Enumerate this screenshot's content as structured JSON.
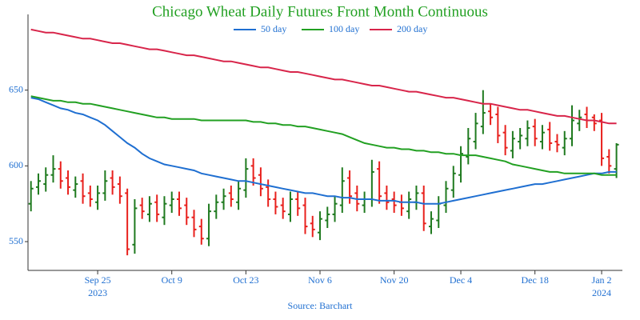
{
  "chart_data": {
    "type": "ohlc",
    "title": "Chicago Wheat Daily Futures Front Month Continuous",
    "source": "Source: Barchart",
    "up_color": "#1f7a1f",
    "down_color": "#e8201c",
    "ylim": [
      531,
      700
    ],
    "yticks": [
      550,
      600,
      650
    ],
    "xticks": [
      {
        "value": 9,
        "label": "Sep 25"
      },
      {
        "value": 19,
        "label": "Oct 9"
      },
      {
        "value": 29,
        "label": "Oct 23"
      },
      {
        "value": 39,
        "label": "Nov 6"
      },
      {
        "value": 49,
        "label": "Nov 20"
      },
      {
        "value": 58,
        "label": "Dec 4"
      },
      {
        "value": 68,
        "label": "Dec 18"
      },
      {
        "value": 77,
        "label": "Jan 2"
      }
    ],
    "xtick_years": [
      {
        "value": 9,
        "label": "2023"
      },
      {
        "value": 77,
        "label": "2024"
      }
    ],
    "open": [
      575,
      586,
      588,
      594,
      598,
      592,
      584,
      590,
      582,
      576,
      582,
      592,
      588,
      582,
      548,
      574,
      568,
      576,
      566,
      574,
      578,
      574,
      566,
      560,
      552,
      570,
      576,
      582,
      576,
      584,
      600,
      594,
      586,
      578,
      574,
      568,
      578,
      574,
      562,
      556,
      564,
      568,
      574,
      592,
      582,
      574,
      578,
      598,
      582,
      578,
      576,
      570,
      576,
      582,
      560,
      564,
      574,
      584,
      594,
      606,
      616,
      626,
      636,
      634,
      622,
      610,
      616,
      618,
      626,
      616,
      624,
      616,
      612,
      618,
      628,
      634,
      632,
      630,
      606,
      598
    ],
    "high": [
      590,
      595,
      599,
      607,
      603,
      597,
      593,
      595,
      587,
      587,
      597,
      597,
      593,
      585,
      578,
      579,
      580,
      581,
      580,
      583,
      583,
      579,
      571,
      565,
      575,
      581,
      585,
      587,
      590,
      605,
      605,
      599,
      591,
      583,
      579,
      583,
      583,
      579,
      567,
      570,
      573,
      580,
      599,
      597,
      587,
      583,
      604,
      603,
      587,
      583,
      581,
      583,
      587,
      587,
      570,
      580,
      590,
      600,
      613,
      625,
      635,
      650,
      641,
      639,
      627,
      623,
      625,
      630,
      631,
      627,
      629,
      621,
      623,
      640,
      637,
      639,
      634,
      635,
      611,
      615
    ],
    "low": [
      570,
      581,
      583,
      589,
      585,
      581,
      579,
      575,
      573,
      571,
      577,
      581,
      575,
      541,
      542,
      565,
      563,
      563,
      561,
      569,
      567,
      561,
      553,
      548,
      547,
      565,
      571,
      573,
      571,
      579,
      587,
      580,
      573,
      568,
      565,
      563,
      567,
      555,
      553,
      551,
      559,
      563,
      569,
      575,
      570,
      569,
      573,
      575,
      571,
      569,
      567,
      565,
      571,
      557,
      555,
      559,
      569,
      579,
      589,
      601,
      611,
      621,
      627,
      615,
      607,
      605,
      611,
      613,
      613,
      611,
      610,
      609,
      607,
      613,
      623,
      625,
      623,
      600,
      595,
      592
    ],
    "close": [
      585,
      590,
      594,
      598,
      590,
      586,
      588,
      580,
      578,
      582,
      590,
      586,
      580,
      545,
      572,
      570,
      575,
      568,
      575,
      578,
      572,
      566,
      558,
      552,
      570,
      576,
      580,
      578,
      585,
      598,
      592,
      585,
      578,
      573,
      570,
      578,
      572,
      560,
      558,
      565,
      568,
      575,
      590,
      580,
      575,
      578,
      596,
      580,
      576,
      574,
      572,
      578,
      582,
      562,
      565,
      575,
      585,
      595,
      608,
      618,
      628,
      635,
      632,
      620,
      612,
      618,
      620,
      625,
      618,
      622,
      615,
      614,
      618,
      630,
      632,
      630,
      628,
      605,
      600,
      614
    ],
    "series": [
      {
        "name": "50 day",
        "color": "#1f6fd1",
        "values": [
          645,
          644,
          642,
          640,
          638,
          637,
          635,
          634,
          632,
          630,
          627,
          623,
          619,
          615,
          612,
          608,
          605,
          603,
          601,
          600,
          599,
          598,
          597,
          595,
          594,
          593,
          592,
          591,
          590,
          590,
          589,
          588,
          587,
          586,
          585,
          584,
          583,
          582,
          582,
          581,
          580,
          580,
          579,
          579,
          578,
          578,
          578,
          577,
          577,
          577,
          576,
          576,
          576,
          575,
          575,
          575,
          576,
          577,
          578,
          579,
          580,
          581,
          582,
          583,
          584,
          585,
          586,
          587,
          588,
          588,
          589,
          590,
          591,
          592,
          593,
          594,
          595,
          595,
          596,
          596
        ]
      },
      {
        "name": "100 day",
        "color": "#22a022",
        "values": [
          646,
          645,
          644,
          643,
          643,
          642,
          642,
          641,
          641,
          640,
          639,
          638,
          637,
          636,
          635,
          634,
          633,
          632,
          632,
          631,
          631,
          631,
          631,
          630,
          630,
          630,
          630,
          630,
          630,
          630,
          629,
          629,
          628,
          628,
          627,
          627,
          626,
          626,
          625,
          624,
          623,
          622,
          621,
          619,
          617,
          615,
          614,
          613,
          612,
          612,
          611,
          611,
          610,
          610,
          609,
          609,
          608,
          608,
          607,
          607,
          607,
          606,
          605,
          604,
          603,
          601,
          600,
          599,
          598,
          597,
          596,
          596,
          595,
          595,
          595,
          595,
          595,
          594,
          594,
          594
        ]
      },
      {
        "name": "200 day",
        "color": "#d8254a",
        "values": [
          690,
          689,
          688,
          688,
          687,
          686,
          685,
          684,
          684,
          683,
          682,
          681,
          681,
          680,
          679,
          678,
          677,
          677,
          676,
          675,
          674,
          673,
          673,
          672,
          671,
          670,
          669,
          669,
          668,
          667,
          666,
          665,
          665,
          664,
          663,
          662,
          662,
          661,
          660,
          659,
          658,
          657,
          657,
          656,
          655,
          654,
          653,
          653,
          652,
          651,
          650,
          649,
          649,
          648,
          647,
          646,
          645,
          645,
          644,
          643,
          642,
          641,
          641,
          640,
          639,
          638,
          637,
          637,
          636,
          635,
          634,
          633,
          633,
          632,
          631,
          630,
          630,
          629,
          628,
          628
        ]
      }
    ]
  }
}
